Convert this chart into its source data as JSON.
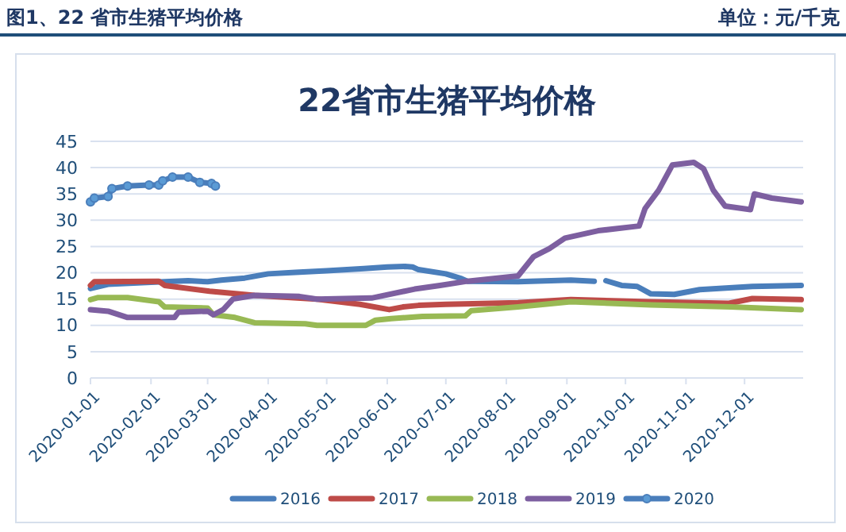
{
  "chart_data": {
    "type": "line",
    "title": "22省市生猪平均价格",
    "annotations": [
      "图1、22 省市生猪平均价格",
      "单位：元/千克"
    ],
    "xlim": [
      "2020-01-01",
      "2020-12-31"
    ],
    "xticks": [
      "2020-01-01",
      "2020-02-01",
      "2020-03-01",
      "2020-04-01",
      "2020-05-01",
      "2020-06-01",
      "2020-07-01",
      "2020-08-01",
      "2020-09-01",
      "2020-10-01",
      "2020-11-01",
      "2020-12-01"
    ],
    "ylim": [
      0,
      45
    ],
    "yticks": [
      0,
      5,
      10,
      15,
      20,
      25,
      30,
      35,
      40,
      45
    ],
    "grid": "y",
    "legend": "bottom",
    "series": [
      {
        "name": "2016",
        "color": "#4a7ebb",
        "marker": "none",
        "x": [
          "2020-01-01",
          "2020-01-10",
          "2020-02-01",
          "2020-02-20",
          "2020-03-01",
          "2020-03-08",
          "2020-03-20",
          "2020-04-01",
          "2020-04-15",
          "2020-05-01",
          "2020-05-20",
          "2020-06-01",
          "2020-06-10",
          "2020-06-14",
          "2020-06-17",
          "2020-07-01",
          "2020-07-09",
          "2020-07-12",
          "2020-08-07",
          "2020-09-03",
          "2020-09-15",
          "2020-09-18",
          "2020-09-21",
          "2020-09-29",
          "2020-10-07",
          "2020-10-14",
          "2020-10-26",
          "2020-11-08",
          "2020-12-05",
          "2020-12-30"
        ],
        "values": [
          17,
          17.8,
          18.2,
          18.5,
          18.3,
          18.6,
          19,
          19.8,
          20.1,
          20.4,
          20.8,
          21.1,
          21.2,
          21.1,
          20.6,
          19.8,
          18.9,
          18.4,
          18.3,
          18.6,
          18.4,
          null,
          18.5,
          17.6,
          17.4,
          16,
          15.9,
          16.8,
          17.4,
          17.6
        ]
      },
      {
        "name": "2017",
        "color": "#be4b48",
        "marker": "none",
        "x": [
          "2020-01-01",
          "2020-01-03",
          "2020-02-05",
          "2020-02-08",
          "2020-03-02",
          "2020-03-25",
          "2020-04-26",
          "2020-05-18",
          "2020-06-02",
          "2020-06-09",
          "2020-06-17",
          "2020-07-01",
          "2020-08-07",
          "2020-09-03",
          "2020-10-13",
          "2020-11-23",
          "2020-12-05",
          "2020-12-30"
        ],
        "values": [
          17.6,
          18.3,
          18.4,
          17.6,
          16.5,
          15.7,
          15,
          14,
          13,
          13.5,
          13.8,
          14,
          14.3,
          14.9,
          14.5,
          14.2,
          15.1,
          14.9
        ]
      },
      {
        "name": "2018",
        "color": "#98b954",
        "marker": "none",
        "x": [
          "2020-01-01",
          "2020-01-05",
          "2020-01-20",
          "2020-02-05",
          "2020-02-08",
          "2020-03-01",
          "2020-03-04",
          "2020-03-15",
          "2020-03-25",
          "2020-04-20",
          "2020-04-26",
          "2020-05-21",
          "2020-05-26",
          "2020-06-03",
          "2020-06-19",
          "2020-07-11",
          "2020-07-14",
          "2020-08-07",
          "2020-09-03",
          "2020-10-14",
          "2020-11-24",
          "2020-12-30"
        ],
        "values": [
          14.9,
          15.3,
          15.3,
          14.5,
          13.5,
          13.3,
          12,
          11.5,
          10.5,
          10.3,
          10,
          10,
          11,
          11.3,
          11.7,
          11.8,
          12.8,
          13.5,
          14.5,
          13.9,
          13.5,
          13
        ]
      },
      {
        "name": "2019",
        "color": "#7d5fa0",
        "marker": "none",
        "x": [
          "2020-01-01",
          "2020-01-10",
          "2020-01-20",
          "2020-02-13",
          "2020-02-15",
          "2020-03-01",
          "2020-03-04",
          "2020-03-09",
          "2020-03-14",
          "2020-03-25",
          "2020-04-17",
          "2020-04-26",
          "2020-05-24",
          "2020-06-15",
          "2020-06-28",
          "2020-07-12",
          "2020-08-07",
          "2020-08-10",
          "2020-08-15",
          "2020-08-23",
          "2020-08-31",
          "2020-09-17",
          "2020-10-08",
          "2020-10-11",
          "2020-10-18",
          "2020-10-25",
          "2020-11-05",
          "2020-11-10",
          "2020-11-15",
          "2020-11-21",
          "2020-12-04",
          "2020-12-06",
          "2020-12-15",
          "2020-12-30"
        ],
        "values": [
          13,
          12.7,
          11.5,
          11.5,
          12.5,
          12.7,
          12,
          13,
          15,
          15.7,
          15.5,
          15,
          15.2,
          16.9,
          17.6,
          18.4,
          19.4,
          20.8,
          23.1,
          24.6,
          26.6,
          28,
          28.9,
          32.2,
          35.7,
          40.5,
          41,
          39.8,
          35.7,
          32.7,
          32,
          35,
          34.2,
          33.5
        ]
      },
      {
        "name": "2020",
        "color": "#4a7ebb",
        "marker": "circle",
        "x": [
          "2020-01-01",
          "2020-01-03",
          "2020-01-10",
          "2020-01-12",
          "2020-01-20",
          "2020-01-31",
          "2020-02-05",
          "2020-02-07",
          "2020-02-12",
          "2020-02-20",
          "2020-02-26",
          "2020-03-03",
          "2020-03-05"
        ],
        "values": [
          33.5,
          34.2,
          34.5,
          36,
          36.5,
          36.7,
          36.7,
          37.5,
          38.2,
          38.2,
          37.2,
          37,
          36.5
        ]
      }
    ]
  }
}
